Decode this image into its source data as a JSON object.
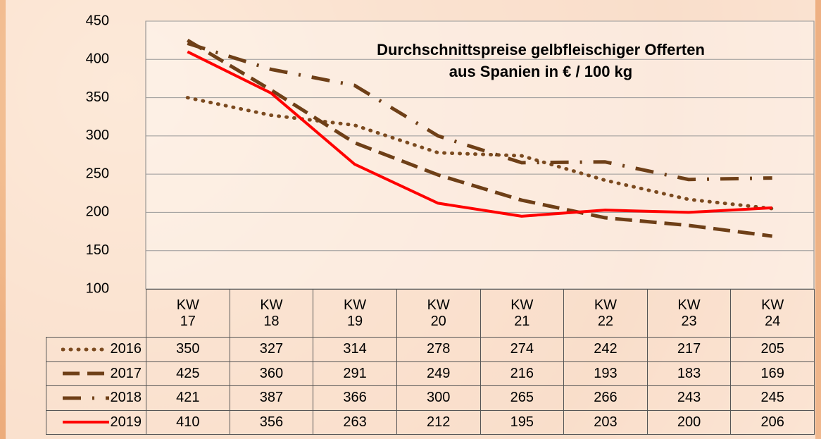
{
  "chart_data": {
    "type": "line",
    "title": "Durchschnittspreise gelbfleischiger Offerten\naus Spanien in € / 100 kg",
    "categories": [
      "KW\n17",
      "KW\n18",
      "KW\n19",
      "KW\n20",
      "KW\n21",
      "KW\n22",
      "KW\n23",
      "KW\n24"
    ],
    "series": [
      {
        "name": "2016",
        "color": "#7b4a1f",
        "line_style": "dotted",
        "values": [
          350,
          327,
          314,
          278,
          274,
          242,
          217,
          205
        ]
      },
      {
        "name": "2017",
        "color": "#6e3f17",
        "line_style": "dashed",
        "values": [
          425,
          360,
          291,
          249,
          216,
          193,
          183,
          169
        ]
      },
      {
        "name": "2018",
        "color": "#6e3f17",
        "line_style": "dashdot",
        "values": [
          421,
          387,
          366,
          300,
          265,
          266,
          243,
          245
        ]
      },
      {
        "name": "2019",
        "color": "#ff0000",
        "line_style": "solid",
        "values": [
          410,
          356,
          263,
          212,
          195,
          203,
          200,
          206
        ]
      }
    ],
    "ylim": [
      100,
      450
    ],
    "yticks": [
      100,
      150,
      200,
      250,
      300,
      350,
      400,
      450
    ],
    "grid": true
  }
}
